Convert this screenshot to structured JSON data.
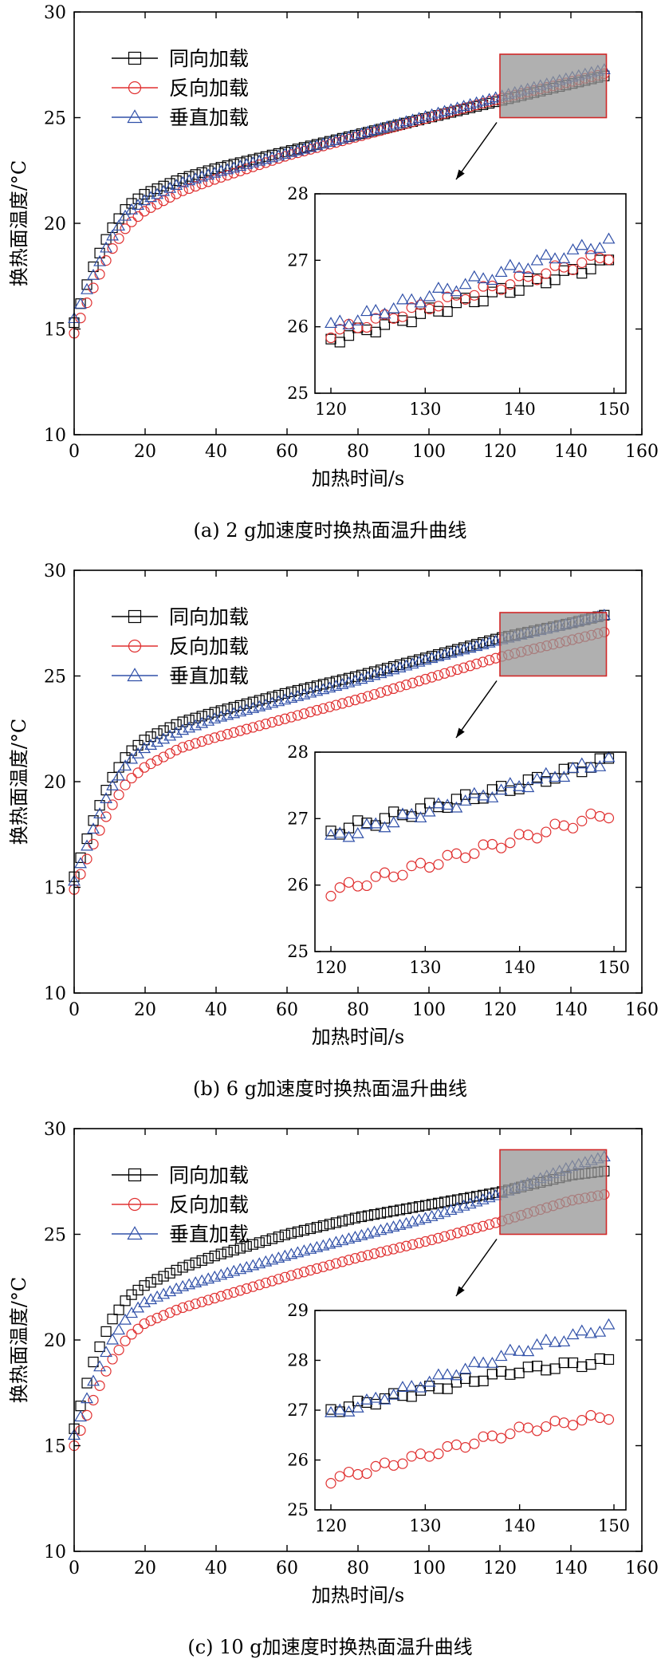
{
  "figure": {
    "panels": [
      {
        "caption": "(a) 2 g加速度时换热面温升曲线",
        "inset_ylim": [
          25,
          28
        ]
      },
      {
        "caption": "(b) 6 g加速度时换热面温升曲线",
        "inset_ylim": [
          25,
          28
        ]
      },
      {
        "caption": "(c) 10 g加速度时换热面温升曲线",
        "inset_ylim": [
          25,
          29
        ]
      }
    ]
  },
  "chart_data": [
    {
      "type": "scatter",
      "title": "(a) 2 g加速度时换热面温升曲线",
      "xlabel": "加热时间/s",
      "ylabel": "换热面温度/°C",
      "xlim": [
        0,
        160
      ],
      "ylim": [
        10,
        30
      ],
      "xticks": [
        0,
        20,
        40,
        60,
        80,
        100,
        120,
        140,
        160
      ],
      "yticks": [
        10,
        15,
        20,
        25,
        30
      ],
      "legend_position": "top-left",
      "series": [
        {
          "name": "同向加载",
          "marker": "square",
          "color": "#000000",
          "x": [
            0,
            5,
            10,
            15,
            20,
            30,
            40,
            60,
            80,
            100,
            120,
            140,
            150
          ],
          "y": [
            15.3,
            17.8,
            19.6,
            20.8,
            21.4,
            22.1,
            22.6,
            23.4,
            24.2,
            25.0,
            25.8,
            26.6,
            27.0
          ]
        },
        {
          "name": "反向加载",
          "marker": "circle",
          "color": "#e03030",
          "x": [
            0,
            5,
            10,
            15,
            20,
            30,
            40,
            60,
            80,
            100,
            120,
            140,
            150
          ],
          "y": [
            14.8,
            16.8,
            18.6,
            19.9,
            20.6,
            21.5,
            22.1,
            23.2,
            24.1,
            25.0,
            25.9,
            26.7,
            27.1
          ]
        },
        {
          "name": "垂直加载",
          "marker": "triangle",
          "color": "#3050a8",
          "x": [
            0,
            5,
            10,
            15,
            20,
            30,
            40,
            60,
            80,
            100,
            120,
            140,
            150
          ],
          "y": [
            15.5,
            17.4,
            19.2,
            20.5,
            21.1,
            21.9,
            22.4,
            23.3,
            24.2,
            25.1,
            26.0,
            26.9,
            27.3
          ]
        }
      ],
      "inset": {
        "xlim": [
          120,
          150
        ],
        "ylim": [
          25,
          28
        ],
        "xticks": [
          120,
          130,
          140,
          150
        ],
        "yticks": [
          25,
          26,
          27,
          28
        ],
        "highlight": {
          "x": [
            120,
            150
          ],
          "y": [
            25,
            28
          ]
        }
      }
    },
    {
      "type": "scatter",
      "title": "(b) 6 g加速度时换热面温升曲线",
      "xlabel": "加热时间/s",
      "ylabel": "换热面温度/°C",
      "xlim": [
        0,
        160
      ],
      "ylim": [
        10,
        30
      ],
      "xticks": [
        0,
        20,
        40,
        60,
        80,
        100,
        120,
        140,
        160
      ],
      "yticks": [
        10,
        15,
        20,
        25,
        30
      ],
      "legend_position": "top-left",
      "series": [
        {
          "name": "同向加载",
          "marker": "square",
          "color": "#000000",
          "x": [
            0,
            5,
            10,
            15,
            20,
            30,
            40,
            60,
            80,
            100,
            120,
            140,
            150
          ],
          "y": [
            15.5,
            18.0,
            20.0,
            21.3,
            22.0,
            22.8,
            23.3,
            24.2,
            25.0,
            25.9,
            26.8,
            27.5,
            27.9
          ]
        },
        {
          "name": "反向加载",
          "marker": "circle",
          "color": "#e03030",
          "x": [
            0,
            5,
            10,
            15,
            20,
            30,
            40,
            60,
            80,
            100,
            120,
            140,
            150
          ],
          "y": [
            14.9,
            16.9,
            18.7,
            20.0,
            20.7,
            21.6,
            22.1,
            23.0,
            23.9,
            24.9,
            25.9,
            26.7,
            27.1
          ]
        },
        {
          "name": "垂直加载",
          "marker": "triangle",
          "color": "#3050a8",
          "x": [
            0,
            5,
            10,
            15,
            20,
            30,
            40,
            60,
            80,
            100,
            120,
            140,
            150
          ],
          "y": [
            15.3,
            17.6,
            19.6,
            20.9,
            21.6,
            22.4,
            23.0,
            23.9,
            24.8,
            25.8,
            26.7,
            27.5,
            27.9
          ]
        }
      ],
      "inset": {
        "xlim": [
          120,
          150
        ],
        "ylim": [
          25,
          28
        ],
        "xticks": [
          120,
          130,
          140,
          150
        ],
        "yticks": [
          25,
          26,
          27,
          28
        ],
        "highlight": {
          "x": [
            120,
            150
          ],
          "y": [
            25,
            28
          ]
        }
      }
    },
    {
      "type": "scatter",
      "title": "(c) 10 g加速度时换热面温升曲线",
      "xlabel": "加热时间/s",
      "ylabel": "换热面温度/°C",
      "xlim": [
        0,
        160
      ],
      "ylim": [
        10,
        30
      ],
      "xticks": [
        0,
        20,
        40,
        60,
        80,
        100,
        120,
        140,
        160
      ],
      "yticks": [
        10,
        15,
        20,
        25,
        30
      ],
      "legend_position": "top-left",
      "series": [
        {
          "name": "同向加载",
          "marker": "square",
          "color": "#000000",
          "x": [
            0,
            5,
            10,
            15,
            20,
            30,
            40,
            60,
            80,
            100,
            120,
            140,
            150
          ],
          "y": [
            15.8,
            18.8,
            20.8,
            22.0,
            22.6,
            23.4,
            24.0,
            25.0,
            25.8,
            26.4,
            27.0,
            27.8,
            28.0
          ]
        },
        {
          "name": "反向加载",
          "marker": "circle",
          "color": "#e03030",
          "x": [
            0,
            5,
            10,
            15,
            20,
            30,
            40,
            60,
            80,
            100,
            120,
            140,
            150
          ],
          "y": [
            15.0,
            17.0,
            18.9,
            20.1,
            20.8,
            21.5,
            22.0,
            23.0,
            23.9,
            24.7,
            25.6,
            26.6,
            26.9
          ]
        },
        {
          "name": "垂直加载",
          "marker": "triangle",
          "color": "#3050a8",
          "x": [
            0,
            5,
            10,
            15,
            20,
            30,
            40,
            60,
            80,
            100,
            120,
            140,
            150
          ],
          "y": [
            15.5,
            17.9,
            19.8,
            21.1,
            21.8,
            22.5,
            23.0,
            24.0,
            24.9,
            25.8,
            26.9,
            28.2,
            28.7
          ]
        }
      ],
      "inset": {
        "xlim": [
          120,
          150
        ],
        "ylim": [
          25,
          29
        ],
        "xticks": [
          120,
          130,
          140,
          150
        ],
        "yticks": [
          25,
          26,
          27,
          28,
          29
        ],
        "highlight": {
          "x": [
            120,
            150
          ],
          "y": [
            25,
            29
          ]
        }
      }
    }
  ]
}
